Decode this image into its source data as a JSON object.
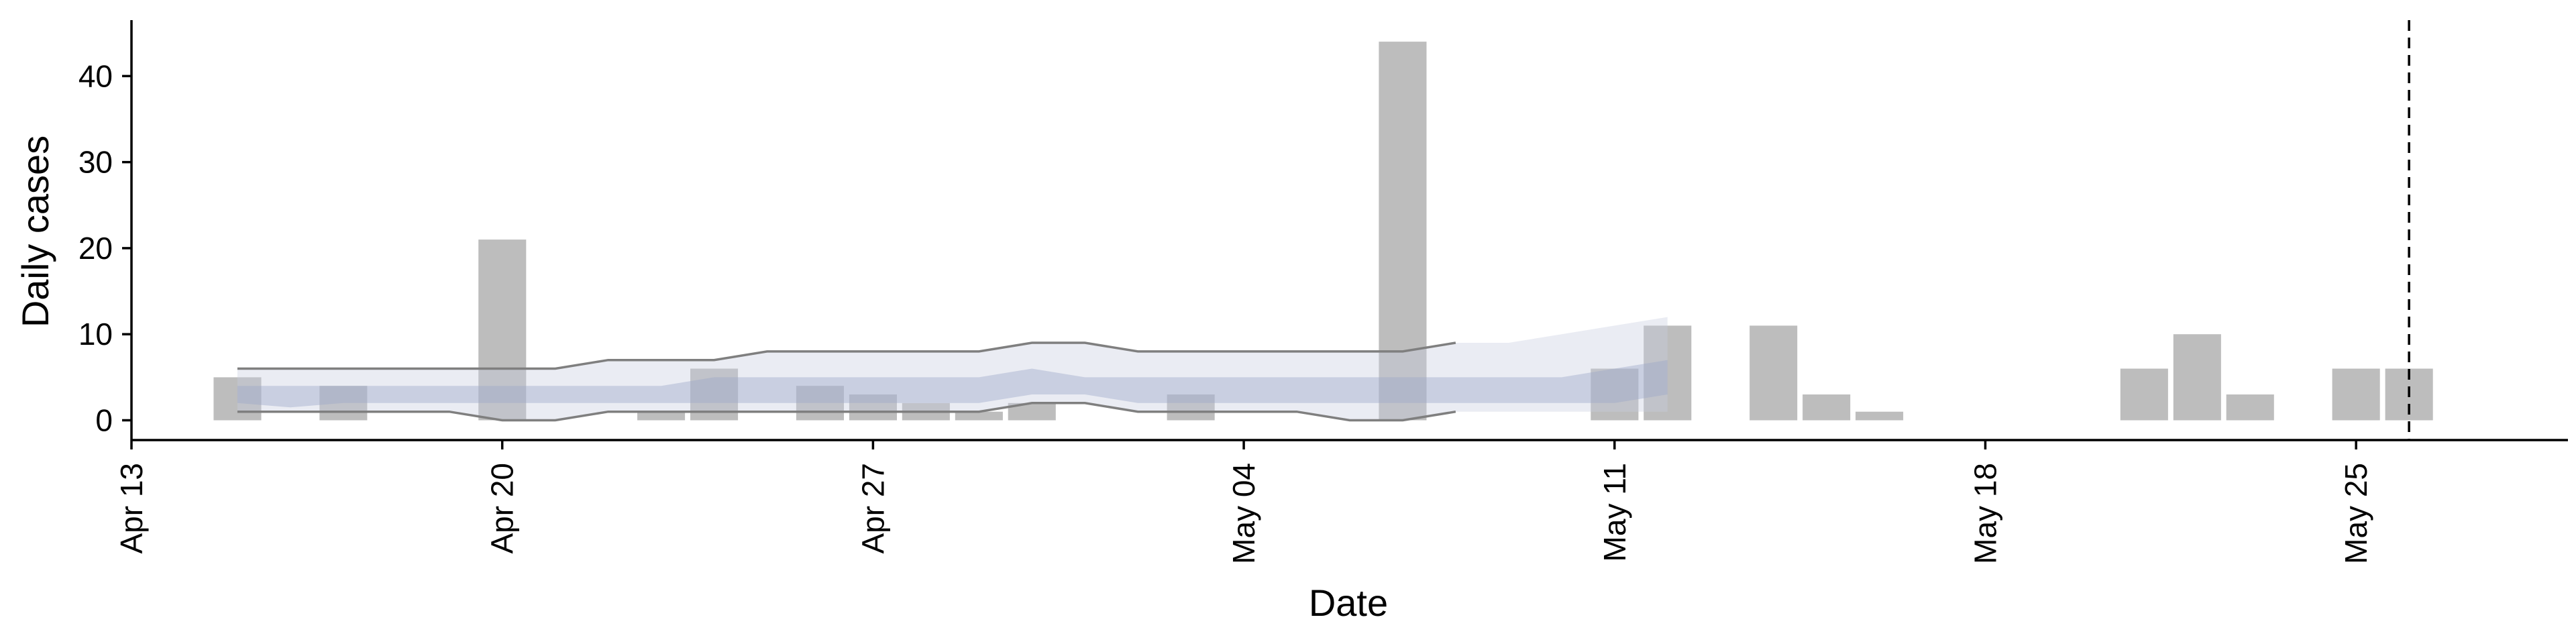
{
  "chart_data": {
    "type": "bar",
    "xlabel": "Date",
    "ylabel": "Daily cases",
    "x_range": [
      "2020-04-13",
      "2020-05-29"
    ],
    "ylim": [
      -2.3,
      46.5
    ],
    "grid": false,
    "x_ticks": [
      {
        "date": "2020-04-13",
        "label": "Apr 13"
      },
      {
        "date": "2020-04-20",
        "label": "Apr 20"
      },
      {
        "date": "2020-04-27",
        "label": "Apr 27"
      },
      {
        "date": "2020-05-04",
        "label": "May 04"
      },
      {
        "date": "2020-05-11",
        "label": "May 11"
      },
      {
        "date": "2020-05-18",
        "label": "May 18"
      },
      {
        "date": "2020-05-25",
        "label": "May 25"
      }
    ],
    "y_ticks": [
      0,
      10,
      20,
      30,
      40
    ],
    "reference_line": {
      "date": "2020-05-26",
      "style": "dashed"
    },
    "colors": {
      "bars": "#bdbdbd",
      "band_90": "#c7cde0",
      "band_50": "#9aa6c8",
      "outer_line": "#7f7f7f",
      "axis": "#000000"
    },
    "observed": [
      {
        "date": "2020-04-15",
        "value": 5
      },
      {
        "date": "2020-04-17",
        "value": 4
      },
      {
        "date": "2020-04-20",
        "value": 21
      },
      {
        "date": "2020-04-23",
        "value": 1
      },
      {
        "date": "2020-04-24",
        "value": 6
      },
      {
        "date": "2020-04-26",
        "value": 4
      },
      {
        "date": "2020-04-27",
        "value": 3
      },
      {
        "date": "2020-04-28",
        "value": 2
      },
      {
        "date": "2020-04-29",
        "value": 1
      },
      {
        "date": "2020-04-30",
        "value": 2
      },
      {
        "date": "2020-05-03",
        "value": 3
      },
      {
        "date": "2020-05-07",
        "value": 44
      },
      {
        "date": "2020-05-11",
        "value": 6
      },
      {
        "date": "2020-05-12",
        "value": 11
      },
      {
        "date": "2020-05-14",
        "value": 11
      },
      {
        "date": "2020-05-15",
        "value": 3
      },
      {
        "date": "2020-05-16",
        "value": 1
      },
      {
        "date": "2020-05-21",
        "value": 6
      },
      {
        "date": "2020-05-22",
        "value": 10
      },
      {
        "date": "2020-05-23",
        "value": 3
      },
      {
        "date": "2020-05-25",
        "value": 6
      },
      {
        "date": "2020-05-26",
        "value": 6
      }
    ],
    "estimate_band": {
      "dates": [
        "2020-04-15",
        "2020-04-16",
        "2020-04-17",
        "2020-04-18",
        "2020-04-19",
        "2020-04-20",
        "2020-04-21",
        "2020-04-22",
        "2020-04-23",
        "2020-04-24",
        "2020-04-25",
        "2020-04-26",
        "2020-04-27",
        "2020-04-28",
        "2020-04-29",
        "2020-04-30",
        "2020-05-01",
        "2020-05-02",
        "2020-05-03",
        "2020-05-04",
        "2020-05-05",
        "2020-05-06",
        "2020-05-07",
        "2020-05-08",
        "2020-05-09",
        "2020-05-10",
        "2020-05-11",
        "2020-05-12"
      ],
      "upper_90": [
        6,
        6,
        6,
        6,
        6,
        6,
        6,
        7,
        7,
        7,
        8,
        8,
        8,
        8,
        8,
        9,
        9,
        8,
        8,
        8,
        8,
        8,
        8,
        9,
        9,
        10,
        11,
        12
      ],
      "upper_50": [
        4,
        4,
        4,
        4,
        4,
        4,
        4,
        4,
        4,
        5,
        5,
        5,
        5,
        5,
        5,
        6,
        5,
        5,
        5,
        5,
        5,
        5,
        5,
        5,
        5,
        5,
        6,
        7
      ],
      "lower_50": [
        2,
        1.5,
        2,
        2,
        2,
        2,
        2,
        2,
        2,
        2,
        2,
        2,
        2,
        2,
        2,
        3,
        3,
        2,
        2,
        2,
        2,
        2,
        2,
        2,
        2,
        2,
        2,
        3
      ],
      "lower_90": [
        1,
        1,
        1,
        1,
        1,
        0,
        0,
        1,
        1,
        1,
        1,
        1,
        1,
        1,
        1,
        2,
        2,
        1,
        1,
        1,
        1,
        0,
        0,
        1,
        1,
        1,
        1,
        1
      ]
    }
  }
}
